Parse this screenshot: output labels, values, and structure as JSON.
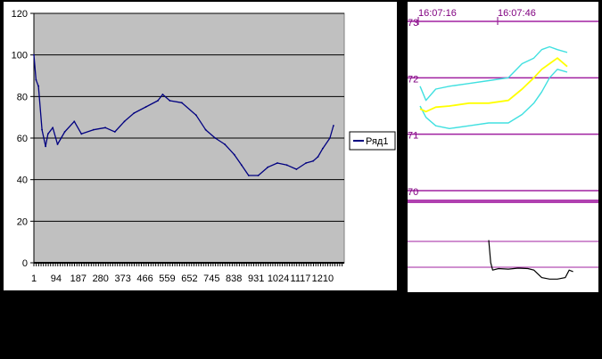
{
  "chart_data": [
    {
      "type": "line",
      "title": "",
      "xlabel": "",
      "ylabel": "",
      "ylim": [
        0,
        120
      ],
      "yticks": [
        "0",
        "20",
        "40",
        "60",
        "80",
        "100",
        "120"
      ],
      "xticks": [
        "1",
        "94",
        "187",
        "280",
        "373",
        "466",
        "559",
        "652",
        "745",
        "838",
        "931",
        "1024",
        "1117",
        "1210"
      ],
      "xlim": [
        1,
        1300
      ],
      "grid": "horizontal",
      "plot_background": "#c0c0c0",
      "legend_position": "right",
      "series": [
        {
          "name": "Ряд1",
          "color": "#000080",
          "x": [
            1,
            10,
            20,
            35,
            50,
            60,
            80,
            100,
            130,
            170,
            200,
            250,
            300,
            340,
            380,
            420,
            470,
            520,
            540,
            570,
            620,
            680,
            720,
            760,
            800,
            840,
            870,
            900,
            940,
            980,
            1020,
            1060,
            1100,
            1140,
            1170,
            1190,
            1210,
            1240,
            1255
          ],
          "y": [
            100,
            88,
            85,
            64,
            56,
            62,
            65,
            57,
            63,
            68,
            62,
            64,
            65,
            63,
            68,
            72,
            75,
            78,
            81,
            78,
            77,
            71,
            64,
            60,
            57,
            52,
            47,
            42,
            42,
            46,
            48,
            47,
            45,
            48,
            49,
            51,
            55,
            60,
            66
          ]
        }
      ]
    },
    {
      "type": "line",
      "title": "",
      "xlabel": "",
      "ylabel": "",
      "time_labels": [
        "16:07:16",
        "16:07:46"
      ],
      "ylim": [
        69.7,
        73.1
      ],
      "y_gridlines": [
        "73",
        "72",
        "71",
        "70"
      ],
      "series": [
        {
          "color": "#40e0e0",
          "x": [
            0,
            3,
            8,
            15,
            25,
            35,
            45,
            52,
            58,
            62,
            66,
            70,
            75
          ],
          "y": [
            71.85,
            71.6,
            71.8,
            71.85,
            71.9,
            71.95,
            72.0,
            72.25,
            72.35,
            72.5,
            72.55,
            72.5,
            72.45
          ]
        },
        {
          "color": "#40e0e0",
          "x": [
            0,
            3,
            8,
            15,
            25,
            35,
            45,
            52,
            58,
            62,
            66,
            70,
            75
          ],
          "y": [
            71.5,
            71.3,
            71.15,
            71.1,
            71.15,
            71.2,
            71.2,
            71.35,
            71.55,
            71.75,
            72.0,
            72.15,
            72.1
          ]
        },
        {
          "color": "#ffff00",
          "x": [
            0,
            3,
            8,
            15,
            25,
            35,
            45,
            52,
            58,
            62,
            66,
            70,
            75
          ],
          "y": [
            71.45,
            71.4,
            71.48,
            71.5,
            71.55,
            71.55,
            71.6,
            71.8,
            72.0,
            72.15,
            72.25,
            72.35,
            72.2
          ]
        }
      ],
      "lower_panel": {
        "color": "#000000",
        "x": [
          35,
          36,
          37,
          40,
          45,
          50,
          55,
          58,
          62,
          66,
          70,
          74,
          76,
          78
        ],
        "y": [
          0.9,
          0.45,
          0.3,
          0.33,
          0.32,
          0.34,
          0.33,
          0.3,
          0.15,
          0.12,
          0.12,
          0.15,
          0.3,
          0.27
        ]
      }
    }
  ]
}
